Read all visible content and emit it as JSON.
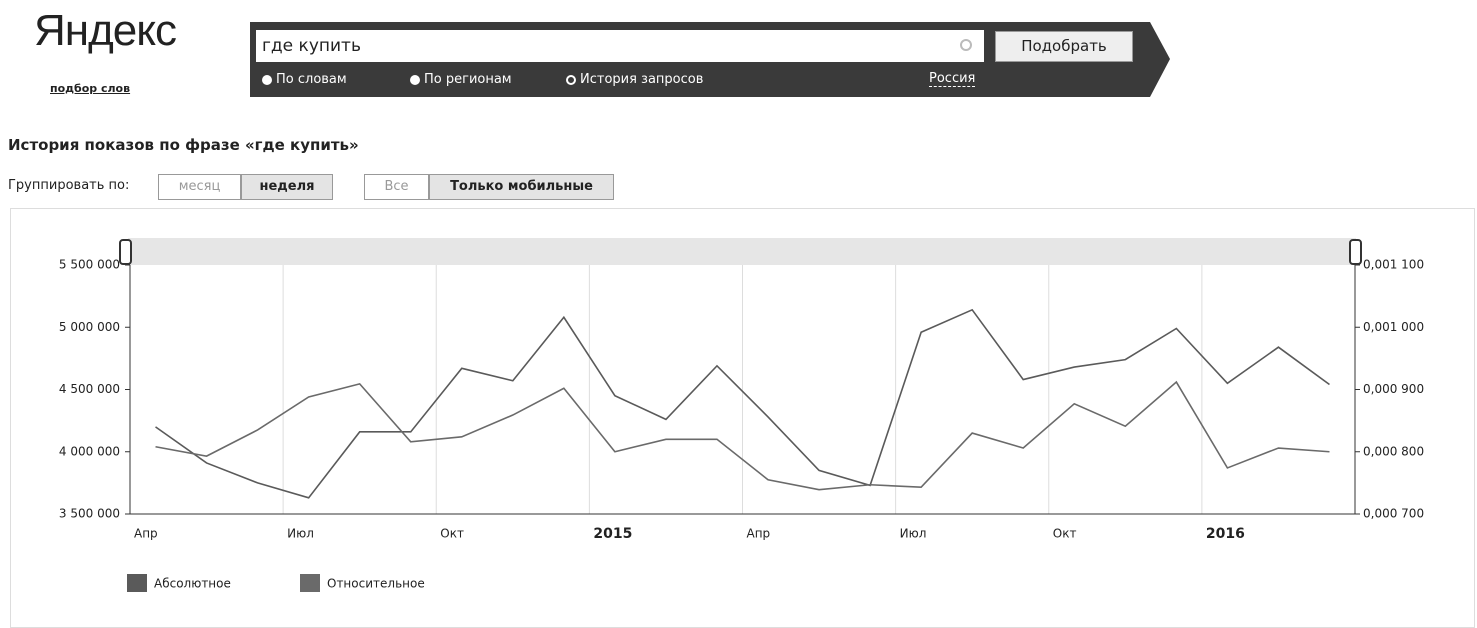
{
  "header": {
    "logo": "Яндекс",
    "logo_sub": "подбор слов",
    "query": "где купить",
    "button": "Подобрать",
    "radios": [
      "По словам",
      "По регионам",
      "История запросов"
    ],
    "region": "Россия"
  },
  "heading": "История показов по фразе «где купить»",
  "group_label": "Группировать по:",
  "group_options": [
    "месяц",
    "неделя"
  ],
  "device_options": [
    "Все",
    "Только мобильные"
  ],
  "chart_data": {
    "type": "line",
    "categories": [
      "Апр",
      null,
      null,
      "Июл",
      null,
      null,
      "Окт",
      null,
      null,
      "2015",
      null,
      null,
      "Апр",
      null,
      null,
      "Июл",
      null,
      null,
      "Окт",
      null,
      null,
      "2016",
      null,
      null
    ],
    "series": [
      {
        "name": "Абсолютное",
        "color": "#5a5a5a",
        "values": [
          4200000,
          3910000,
          3750000,
          3630000,
          4160000,
          4160000,
          4670000,
          4570000,
          5080000,
          4450000,
          4260000,
          4690000,
          4280000,
          3850000,
          3730000,
          4960000,
          5140000,
          4580000,
          4680000,
          4740000,
          4990000,
          4550000,
          4840000,
          4540000
        ]
      },
      {
        "name": "Относительное",
        "color": "#6a6a6a",
        "axis": "y2",
        "values": [
          0.000808,
          0.000793,
          0.000835,
          0.000888,
          0.000909,
          0.000816,
          0.000824,
          0.000859,
          0.000902,
          0.0008,
          0.00082,
          0.00082,
          0.000755,
          0.000739,
          0.000747,
          0.000743,
          0.00083,
          0.000806,
          0.000877,
          0.000841,
          0.000912,
          0.000774,
          0.000806,
          0.0008
        ]
      }
    ],
    "ylim": [
      3500000,
      5500000
    ],
    "yticks": [
      {
        "value": 3500000,
        "label": "3 500 000"
      },
      {
        "value": 4000000,
        "label": "4 000 000"
      },
      {
        "value": 4500000,
        "label": "4 500 000"
      },
      {
        "value": 5000000,
        "label": "5 000 000"
      },
      {
        "value": 5500000,
        "label": "5 500 000"
      }
    ],
    "y2lim": [
      0.0007,
      0.0011
    ],
    "y2ticks": [
      {
        "value": 0.0007,
        "label": "0,000 700"
      },
      {
        "value": 0.0008,
        "label": "0,000 800"
      },
      {
        "value": 0.0009,
        "label": "0,000 900"
      },
      {
        "value": 0.001,
        "label": "0,001 000"
      },
      {
        "value": 0.0011,
        "label": "0,001 100"
      }
    ],
    "grid": true
  }
}
